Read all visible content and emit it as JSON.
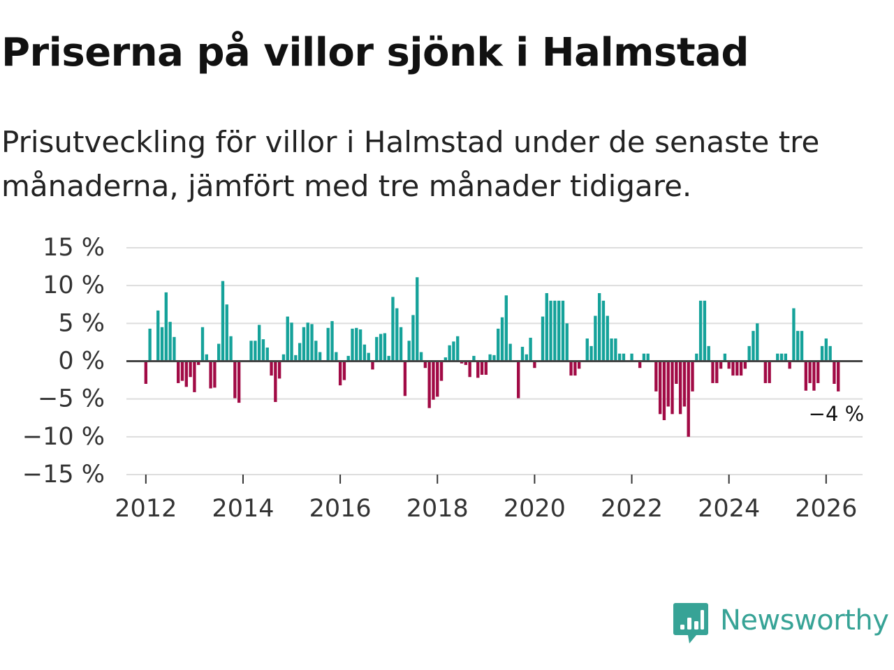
{
  "title": "Priserna på villor sjönk i Halmstad",
  "subtitle": "Prisutveckling för villor i Halmstad under de senaste tre månaderna, jämfört med tre månader tidigare.",
  "brand": {
    "name": "Newsworthy",
    "color": "#37a396",
    "icon": "newsworthy-logo-icon"
  },
  "colors": {
    "positive": "#15a29a",
    "negative": "#a10a45",
    "grid": "#dddddd",
    "zero": "#444444"
  },
  "chart_data": {
    "type": "bar",
    "title": "Priserna på villor sjönk i Halmstad",
    "xlabel": "",
    "ylabel": "",
    "y_unit": "%",
    "ylim": [
      -15,
      15
    ],
    "yticks": [
      15,
      10,
      5,
      0,
      -5,
      -10,
      -15
    ],
    "ytick_labels": [
      "15 %",
      "10 %",
      "5 %",
      "0 %",
      "−5 %",
      "−10 %",
      "−15 %"
    ],
    "xlim": [
      2011.6,
      2026.75
    ],
    "xticks": [
      2012,
      2014,
      2016,
      2018,
      2020,
      2022,
      2024,
      2026
    ],
    "xtick_labels": [
      "2012",
      "2014",
      "2016",
      "2018",
      "2020",
      "2022",
      "2024",
      "2026"
    ],
    "grid": true,
    "series": [
      {
        "name": "Prisutveckling",
        "start": "2012-01",
        "step": "month",
        "values": [
          -3,
          4.3,
          0,
          6.7,
          4.5,
          9.1,
          5.2,
          3.2,
          -2.9,
          -2.6,
          -3.4,
          -2.1,
          -4.1,
          -0.5,
          4.5,
          0.9,
          -3.6,
          -3.5,
          2.3,
          10.6,
          7.5,
          3.3,
          -4.9,
          -5.5,
          0,
          0,
          2.7,
          2.7,
          4.8,
          2.9,
          1.8,
          -1.9,
          -5.4,
          -2.3,
          0.9,
          5.9,
          5.1,
          0.8,
          2.4,
          4.5,
          5.1,
          4.9,
          2.7,
          1.2,
          0,
          4.4,
          5.3,
          1.2,
          -3.2,
          -2.5,
          0.7,
          4.3,
          4.4,
          4.2,
          2.2,
          1.1,
          -1.1,
          3.2,
          3.6,
          3.7,
          0.7,
          8.5,
          7.0,
          4.5,
          -4.6,
          2.7,
          6.1,
          11.1,
          1.2,
          -0.9,
          -6.2,
          -5.1,
          -4.7,
          -2.6,
          0.5,
          2.1,
          2.6,
          3.3,
          -0.3,
          -0.5,
          -2.1,
          0.7,
          -2.2,
          -1.8,
          -1.8,
          0.9,
          0.8,
          4.3,
          5.8,
          8.7,
          2.3,
          0,
          -4.9,
          1.9,
          0.9,
          3.1,
          -0.9,
          0,
          5.9,
          9.0,
          8.0,
          8.0,
          8.0,
          8.0,
          5.0,
          -1.9,
          -1.9,
          -1.0,
          0,
          3.0,
          2.0,
          6.0,
          9.0,
          8.0,
          6.0,
          3.0,
          3.0,
          1.0,
          1.0,
          0,
          1.0,
          0,
          -0.9,
          1.0,
          1.0,
          0,
          -4.0,
          -7.0,
          -7.8,
          -6.0,
          -7.0,
          -3.0,
          -7.0,
          -6.0,
          -10.0,
          -4.0,
          1.0,
          8.0,
          8.0,
          2.0,
          -2.9,
          -2.9,
          -1.0,
          1.0,
          -1.0,
          -1.9,
          -1.9,
          -1.9,
          -1.0,
          2.0,
          4.0,
          5.0,
          0,
          -2.9,
          -2.9,
          0,
          1.0,
          1.0,
          1.0,
          -1.0,
          7.0,
          4.0,
          4.0,
          -3.9,
          -2.9,
          -3.9,
          -2.9,
          2.0,
          3.0,
          2.0,
          -3.0,
          -4.0
        ]
      }
    ],
    "annotation": {
      "label": "−4 %",
      "value": -4
    }
  }
}
